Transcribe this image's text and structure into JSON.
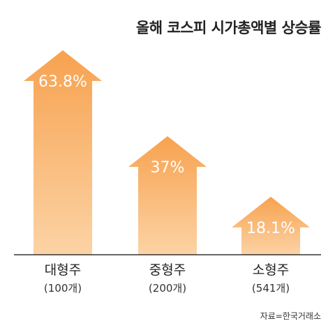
{
  "chart_data": {
    "type": "bar",
    "title": "올해 코스피 시가총액별 상승률",
    "categories": [
      "대형주",
      "중형주",
      "소형주"
    ],
    "subcategories": [
      "(100개)",
      "(200개)",
      "(541개)"
    ],
    "values": [
      63.8,
      37,
      18.1
    ],
    "value_labels": [
      "63.8%",
      "37%",
      "18.1%"
    ],
    "unit": "%",
    "ylim": [
      0,
      70
    ],
    "bar_color_top": "#f7a24f",
    "bar_color_bottom": "#fcd3a5",
    "source": "자료=한국거래소"
  }
}
